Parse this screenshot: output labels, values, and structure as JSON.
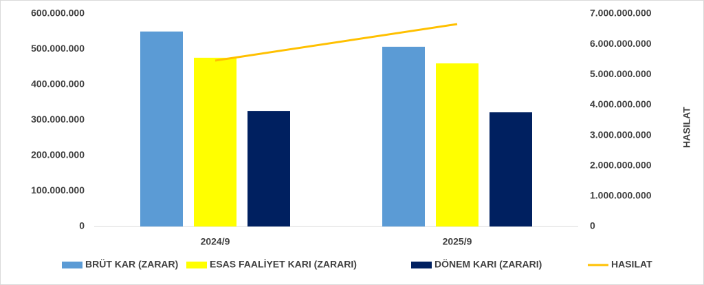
{
  "chart_data": {
    "type": "bar",
    "categories": [
      "2024/9",
      "2025/9"
    ],
    "series": [
      {
        "name": "BRÜT KAR (ZARAR)",
        "color": "#5b9bd5",
        "values": [
          550000000,
          507000000
        ]
      },
      {
        "name": "ESAS FAALİYET KARI (ZARARI)",
        "color": "#ffff00",
        "values": [
          476000000,
          460000000
        ]
      },
      {
        "name": "DÖNEM KARI (ZARARI)",
        "color": "#002060",
        "values": [
          326000000,
          322000000
        ]
      },
      {
        "name": "HASILAT",
        "color": "#ffc000",
        "type": "line",
        "axis": "y2",
        "values": [
          5460000000,
          6660000000
        ]
      }
    ],
    "ylim": [
      0,
      600000000
    ],
    "yticks": [
      0,
      {
        "value": 100000000,
        "label": "100.000.000"
      },
      {
        "value": 200000000,
        "label": "200.000.000"
      },
      {
        "value": 300000000,
        "label": "300.000.000"
      },
      {
        "value": 400000000,
        "label": "400.000.000"
      },
      {
        "value": 500000000,
        "label": "500.000.000"
      },
      {
        "value": 600000000,
        "label": "600.000.000"
      }
    ],
    "y2lim": [
      0,
      7000000000
    ],
    "y2ticks": [
      0,
      {
        "value": 1000000000,
        "label": "1.000.000.000"
      },
      {
        "value": 2000000000,
        "label": "2.000.000.000"
      },
      {
        "value": 3000000000,
        "label": "3.000.000.000"
      },
      {
        "value": 4000000000,
        "label": "4.000.000.000"
      },
      {
        "value": 5000000000,
        "label": "5.000.000.000"
      },
      {
        "value": 6000000000,
        "label": "6.000.000.000"
      },
      {
        "value": 7000000000,
        "label": "7.000.000.000"
      }
    ],
    "y2label": "HASILAT",
    "legend": "bottom"
  }
}
